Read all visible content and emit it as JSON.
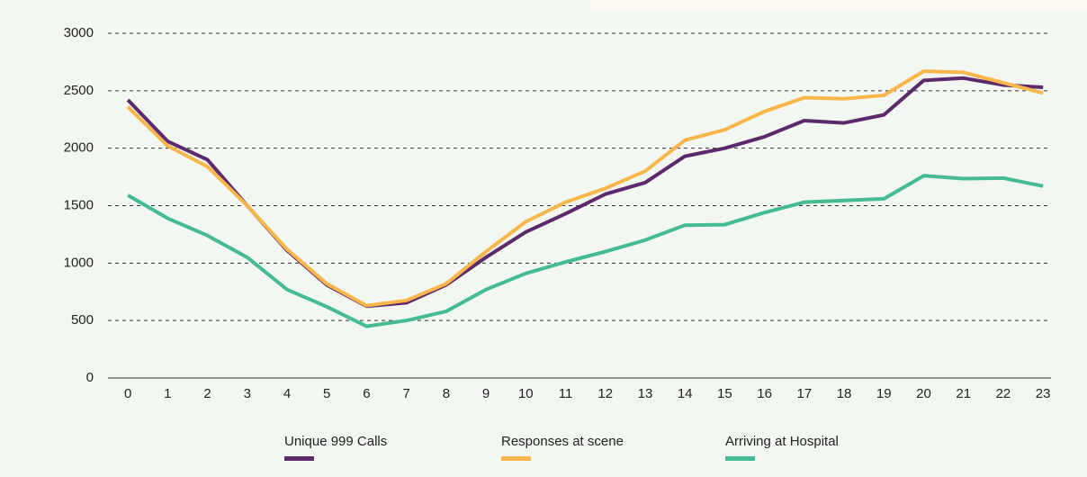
{
  "chart_data": {
    "type": "line",
    "x": [
      0,
      1,
      2,
      3,
      4,
      5,
      6,
      7,
      8,
      9,
      10,
      11,
      12,
      13,
      14,
      15,
      16,
      17,
      18,
      19,
      20,
      21,
      22,
      23
    ],
    "xlim": [
      -0.5,
      23.2
    ],
    "ylim": [
      0,
      3000
    ],
    "yticks": [
      0,
      500,
      1000,
      1500,
      2000,
      2500,
      3000
    ],
    "grid": true,
    "legend": "bottom",
    "series": [
      {
        "name": "Unique 999 Calls",
        "color": "#5c2a6b",
        "values": [
          2420,
          2060,
          1900,
          1500,
          1110,
          810,
          625,
          655,
          810,
          1050,
          1270,
          1430,
          1600,
          1700,
          1930,
          2000,
          2100,
          2240,
          2220,
          2290,
          2590,
          2610,
          2550,
          2530
        ]
      },
      {
        "name": "Responses at scene",
        "color": "#f9b64a",
        "values": [
          2360,
          2020,
          1840,
          1500,
          1120,
          820,
          630,
          675,
          820,
          1100,
          1360,
          1530,
          1650,
          1800,
          2070,
          2160,
          2320,
          2440,
          2430,
          2460,
          2670,
          2660,
          2570,
          2480
        ]
      },
      {
        "name": "Arriving at Hospital",
        "color": "#44bb93",
        "values": [
          1590,
          1390,
          1240,
          1050,
          770,
          620,
          450,
          500,
          580,
          770,
          910,
          1010,
          1100,
          1200,
          1330,
          1335,
          1440,
          1530,
          1545,
          1560,
          1760,
          1735,
          1740,
          1670
        ]
      }
    ]
  }
}
